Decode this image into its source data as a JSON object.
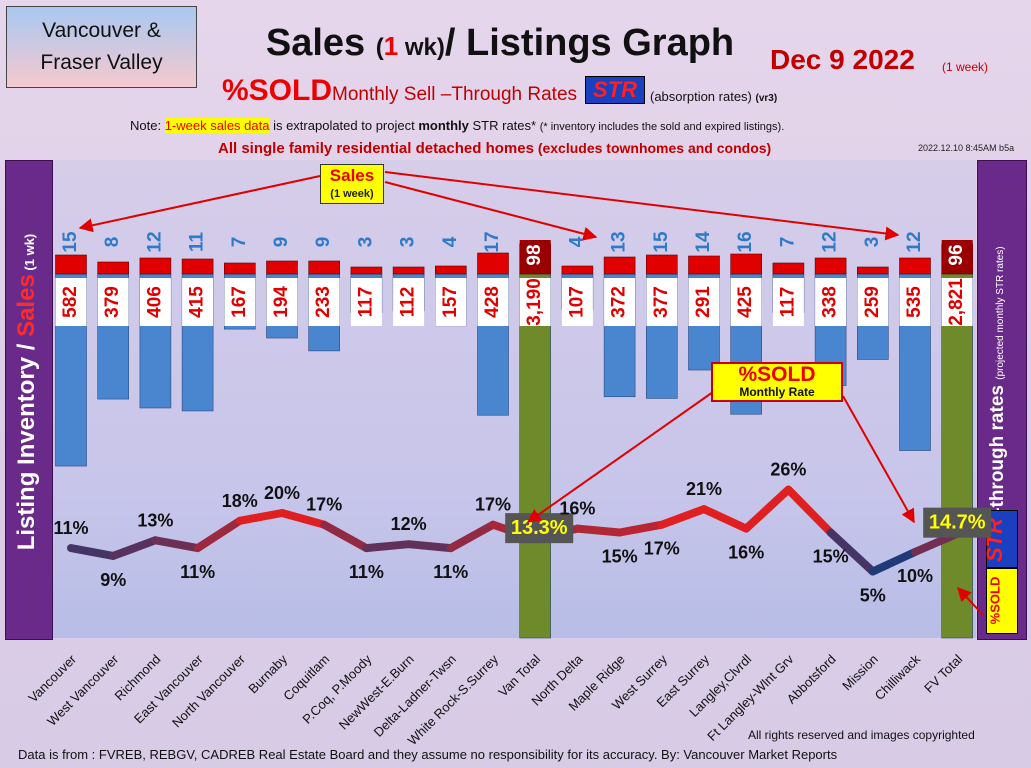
{
  "header": {
    "region_line1": "Vancouver &",
    "region_line2": "Fraser Valley",
    "title_a": "Sales ",
    "title_b": "(",
    "title_c": "1",
    "title_d": " wk)",
    "title_e": "/ Listings Graph",
    "date": "Dec 9  2022",
    "date_small": "(1 week)",
    "sold_label": "%SOLD",
    "monthly_label": "Monthly Sell –Through Rates",
    "str_label": "STR",
    "absorption": "(absorption rates)",
    "version": "(vr3)",
    "note_a": "Note: ",
    "note_hl": "1-week sales data",
    "note_b": " is extrapolated to project ",
    "note_bold": "monthly",
    "note_c": " STR rates* ",
    "note_tiny": "(* inventory includes the sold and expired listings).",
    "homes_a": "All single family residential detached homes",
    "homes_b": " (excludes townhomes and condos)",
    "stamp": "2022.12.10 8:45AM b5a"
  },
  "side": {
    "left_a": "Listing Inventory ",
    "left_slash": "/ ",
    "left_sales": "Sales",
    "left_b": " (1 wk)",
    "right_a": "Sell-through rates ",
    "right_b": "(projected monthly STR rates)",
    "str_vert": "STR",
    "sold_vert": "%SOLD"
  },
  "callouts": {
    "sales_a": "Sales",
    "sales_b": "(1 week)",
    "sold_a": "%SOLD",
    "sold_b": "Monthly Rate"
  },
  "footer": {
    "copyright": "All rights reserved and  images copyrighted",
    "source": "Data is from : FVREB, REBGV, CADREB Real Estate Board and they assume no responsibility for its accuracy. By: Vancouver Market Reports"
  },
  "colors": {
    "inventory_bar": "#4a86d0",
    "total_bar": "#6e8a2a",
    "sales_bar": "#e00000",
    "total_sales_bar": "#9a0000",
    "label_red": "#e00000",
    "label_blue": "#2e7ac8",
    "line_high": "#e02020",
    "line_low": "#1e3a78"
  },
  "chart_data": {
    "type": "bar",
    "categories": [
      "Vancouver",
      "West Vancouver",
      "Richmond",
      "East Vancouver",
      "North Vancouver",
      "Burnaby",
      "Coquitlam",
      "P.Coq, P.Moody",
      "NewWest-E.Burn",
      "Delta-Ladner-Twsn",
      "White Rock-S.Surrey",
      "Van Total",
      "North Delta",
      "Maple Ridge",
      "West Surrey",
      "East Surrey",
      "Langley,Clvrdl",
      "Ft Langley-Wlnt Grv",
      "Abbotsford",
      "Mission",
      "Chilliwack",
      "FV Total"
    ],
    "series": [
      {
        "name": "Sales",
        "values": [
          15,
          8,
          12,
          11,
          7,
          9,
          9,
          3,
          3,
          4,
          17,
          98,
          4,
          13,
          15,
          14,
          16,
          7,
          12,
          3,
          12,
          96
        ]
      },
      {
        "name": "Listing Inventory",
        "values": [
          582,
          379,
          406,
          415,
          167,
          194,
          233,
          117,
          112,
          157,
          428,
          3190,
          107,
          372,
          377,
          291,
          425,
          117,
          338,
          259,
          535,
          2821
        ]
      },
      {
        "name": "%SOLD",
        "values": [
          11,
          9,
          13,
          11,
          18,
          20,
          17,
          11,
          12,
          11,
          17,
          13.3,
          16,
          15,
          17,
          21,
          16,
          26,
          15,
          5,
          10,
          14.7
        ]
      }
    ],
    "inventory_labels": [
      "582",
      "379",
      "406",
      "415",
      "167",
      "194",
      "233",
      "117",
      "112",
      "157",
      "428",
      "3,190",
      "107",
      "372",
      "377",
      "291",
      "425",
      "117",
      "338",
      "259",
      "535",
      "2,821"
    ],
    "pct_labels": [
      "11%",
      "9%",
      "13%",
      "11%",
      "18%",
      "20%",
      "17%",
      "11%",
      "12%",
      "11%",
      "17%",
      "13.3%",
      "16%",
      "15%",
      "17%",
      "21%",
      "16%",
      "26%",
      "15%",
      "5%",
      "10%",
      "14.7%"
    ],
    "totals": [
      "Van Total",
      "FV Total"
    ],
    "title": "Sales (1 wk)/ Listings Graph",
    "ylabel": "Listing Inventory / Sales (1 wk)",
    "y2label": "Sell-through rates (projected monthly STR rates)",
    "grid": false
  }
}
